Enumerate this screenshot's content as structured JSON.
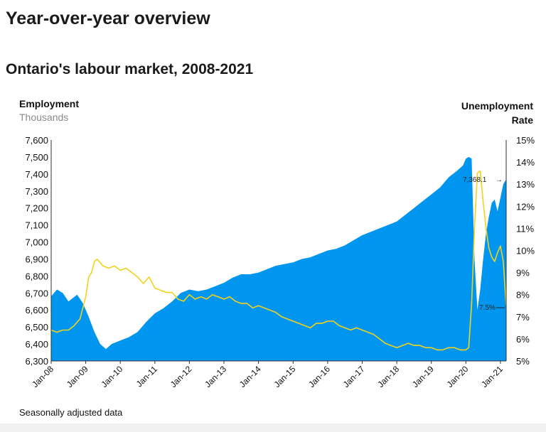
{
  "page": {
    "heading": "Year-over-year overview",
    "subheading": "Ontario's labour market, 2008-2021"
  },
  "chart_data": {
    "type": "area",
    "title": "Ontario's labour market, 2008-2021",
    "left_axis": {
      "label": "Employment",
      "sublabel": "Thousands",
      "ylim": [
        6300,
        7600
      ],
      "ticks": [
        "6,300",
        "6,400",
        "6,500",
        "6,600",
        "6,700",
        "6,800",
        "6,900",
        "7,000",
        "7,100",
        "7,200",
        "7,300",
        "7,400",
        "7,500",
        "7,600"
      ]
    },
    "right_axis": {
      "label_line1": "Unemployment",
      "label_line2": "Rate",
      "ylim": [
        5,
        15
      ],
      "ticks": [
        "5%",
        "6%",
        "7%",
        "8%",
        "9%",
        "10%",
        "11%",
        "12%",
        "13%",
        "14%",
        "15%"
      ]
    },
    "x_ticks": [
      "Jan-08",
      "Jan-09",
      "Jan-10",
      "Jan-11",
      "Jan-12",
      "Jan-13",
      "Jan-14",
      "Jan-15",
      "Jan-16",
      "Jan-17",
      "Jan-18",
      "Jan-19",
      "Jan-20",
      "Jan-21"
    ],
    "x_range": [
      "Jan-08",
      "Mar-21"
    ],
    "grid": false,
    "footnote": "Seasonally adjusted data",
    "colors": {
      "employment": "#0096f0",
      "unemployment": "#f2d21b"
    },
    "annotations": {
      "employment_last": "7,368.1",
      "unemployment_last": "7.5%"
    },
    "series": [
      {
        "axis": "left",
        "type": "area",
        "values": [
          [
            0,
            6680
          ],
          [
            2,
            6720
          ],
          [
            4,
            6700
          ],
          [
            6,
            6650
          ],
          [
            9,
            6690
          ],
          [
            11,
            6640
          ],
          [
            13,
            6560
          ],
          [
            15,
            6470
          ],
          [
            17,
            6400
          ],
          [
            19,
            6370
          ],
          [
            21,
            6400
          ],
          [
            24,
            6420
          ],
          [
            27,
            6440
          ],
          [
            30,
            6470
          ],
          [
            33,
            6530
          ],
          [
            36,
            6580
          ],
          [
            39,
            6610
          ],
          [
            42,
            6650
          ],
          [
            45,
            6700
          ],
          [
            48,
            6720
          ],
          [
            51,
            6710
          ],
          [
            54,
            6720
          ],
          [
            57,
            6740
          ],
          [
            60,
            6760
          ],
          [
            63,
            6790
          ],
          [
            66,
            6810
          ],
          [
            69,
            6810
          ],
          [
            72,
            6820
          ],
          [
            75,
            6840
          ],
          [
            78,
            6860
          ],
          [
            81,
            6870
          ],
          [
            84,
            6880
          ],
          [
            87,
            6900
          ],
          [
            90,
            6910
          ],
          [
            93,
            6930
          ],
          [
            96,
            6950
          ],
          [
            99,
            6960
          ],
          [
            102,
            6980
          ],
          [
            105,
            7010
          ],
          [
            108,
            7040
          ],
          [
            111,
            7060
          ],
          [
            114,
            7080
          ],
          [
            117,
            7100
          ],
          [
            120,
            7120
          ],
          [
            123,
            7160
          ],
          [
            126,
            7200
          ],
          [
            129,
            7240
          ],
          [
            132,
            7280
          ],
          [
            135,
            7320
          ],
          [
            138,
            7380
          ],
          [
            141,
            7420
          ],
          [
            143,
            7450
          ],
          [
            144,
            7490
          ],
          [
            145,
            7500
          ],
          [
            146,
            7490
          ],
          [
            147,
            6900
          ],
          [
            148,
            6600
          ],
          [
            149,
            6720
          ],
          [
            150,
            6900
          ],
          [
            151,
            7050
          ],
          [
            152,
            7150
          ],
          [
            153,
            7230
          ],
          [
            154,
            7250
          ],
          [
            155,
            7180
          ],
          [
            156,
            7260
          ],
          [
            157,
            7340
          ],
          [
            158,
            7368.1
          ]
        ]
      },
      {
        "axis": "right",
        "type": "line",
        "values": [
          [
            0,
            6.4
          ],
          [
            2,
            6.3
          ],
          [
            4,
            6.4
          ],
          [
            6,
            6.4
          ],
          [
            8,
            6.6
          ],
          [
            10,
            6.9
          ],
          [
            12,
            7.9
          ],
          [
            13,
            8.8
          ],
          [
            14,
            9.0
          ],
          [
            15,
            9.5
          ],
          [
            16,
            9.6
          ],
          [
            18,
            9.3
          ],
          [
            20,
            9.2
          ],
          [
            22,
            9.3
          ],
          [
            24,
            9.1
          ],
          [
            26,
            9.2
          ],
          [
            28,
            9.0
          ],
          [
            30,
            8.8
          ],
          [
            32,
            8.5
          ],
          [
            34,
            8.8
          ],
          [
            36,
            8.3
          ],
          [
            38,
            8.2
          ],
          [
            40,
            8.1
          ],
          [
            42,
            8.1
          ],
          [
            44,
            7.8
          ],
          [
            46,
            7.7
          ],
          [
            48,
            8.0
          ],
          [
            50,
            7.8
          ],
          [
            52,
            7.9
          ],
          [
            54,
            7.8
          ],
          [
            56,
            8.0
          ],
          [
            58,
            7.9
          ],
          [
            60,
            7.8
          ],
          [
            62,
            7.9
          ],
          [
            64,
            7.7
          ],
          [
            66,
            7.6
          ],
          [
            68,
            7.6
          ],
          [
            70,
            7.4
          ],
          [
            72,
            7.5
          ],
          [
            74,
            7.4
          ],
          [
            76,
            7.3
          ],
          [
            78,
            7.2
          ],
          [
            80,
            7.0
          ],
          [
            82,
            6.9
          ],
          [
            84,
            6.8
          ],
          [
            86,
            6.7
          ],
          [
            88,
            6.6
          ],
          [
            90,
            6.5
          ],
          [
            92,
            6.7
          ],
          [
            94,
            6.7
          ],
          [
            96,
            6.8
          ],
          [
            98,
            6.8
          ],
          [
            100,
            6.6
          ],
          [
            102,
            6.5
          ],
          [
            104,
            6.4
          ],
          [
            106,
            6.5
          ],
          [
            108,
            6.4
          ],
          [
            110,
            6.3
          ],
          [
            112,
            6.2
          ],
          [
            114,
            6.0
          ],
          [
            116,
            5.8
          ],
          [
            118,
            5.7
          ],
          [
            120,
            5.6
          ],
          [
            122,
            5.7
          ],
          [
            124,
            5.8
          ],
          [
            126,
            5.7
          ],
          [
            128,
            5.7
          ],
          [
            130,
            5.6
          ],
          [
            132,
            5.6
          ],
          [
            134,
            5.5
          ],
          [
            136,
            5.5
          ],
          [
            138,
            5.6
          ],
          [
            140,
            5.6
          ],
          [
            142,
            5.5
          ],
          [
            144,
            5.5
          ],
          [
            145,
            5.6
          ],
          [
            146,
            7.6
          ],
          [
            147,
            11.0
          ],
          [
            148,
            13.5
          ],
          [
            149,
            13.6
          ],
          [
            150,
            12.2
          ],
          [
            151,
            11.0
          ],
          [
            152,
            10.1
          ],
          [
            153,
            9.7
          ],
          [
            154,
            9.5
          ],
          [
            155,
            9.9
          ],
          [
            156,
            10.2
          ],
          [
            157,
            9.5
          ],
          [
            158,
            7.5
          ]
        ]
      }
    ]
  }
}
